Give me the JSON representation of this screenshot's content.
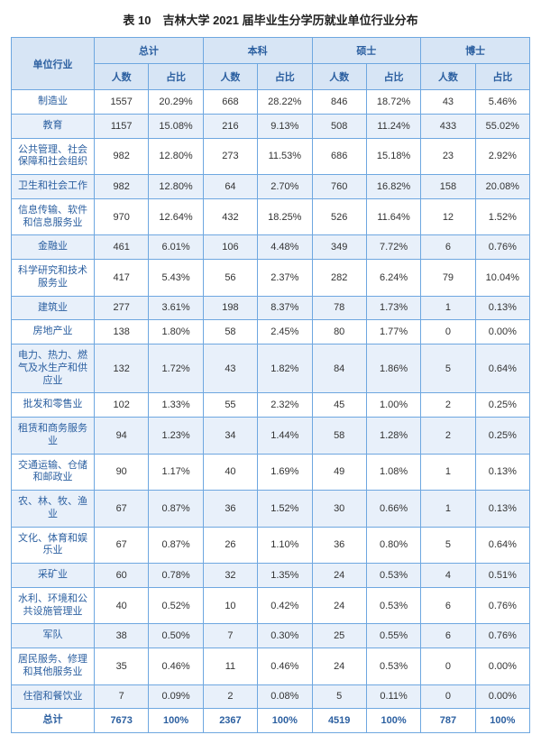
{
  "title": "表 10　吉林大学 2021 届毕业生分学历就业单位行业分布",
  "colors": {
    "border": "#6ea7e0",
    "header_bg": "#d7e5f5",
    "alt_row_bg": "#e8f0fa",
    "text": "#333333",
    "header_text": "#2b5fa0"
  },
  "table": {
    "type": "table",
    "row_header": "单位行业",
    "groups": [
      "总计",
      "本科",
      "硕士",
      "博士"
    ],
    "sub_cols": [
      "人数",
      "占比"
    ],
    "rows": [
      {
        "industry": "制造业",
        "total_n": "1557",
        "total_p": "20.29%",
        "ug_n": "668",
        "ug_p": "28.22%",
        "ms_n": "846",
        "ms_p": "18.72%",
        "phd_n": "43",
        "phd_p": "5.46%"
      },
      {
        "industry": "教育",
        "total_n": "1157",
        "total_p": "15.08%",
        "ug_n": "216",
        "ug_p": "9.13%",
        "ms_n": "508",
        "ms_p": "11.24%",
        "phd_n": "433",
        "phd_p": "55.02%"
      },
      {
        "industry": "公共管理、社会保障和社会组织",
        "total_n": "982",
        "total_p": "12.80%",
        "ug_n": "273",
        "ug_p": "11.53%",
        "ms_n": "686",
        "ms_p": "15.18%",
        "phd_n": "23",
        "phd_p": "2.92%"
      },
      {
        "industry": "卫生和社会工作",
        "total_n": "982",
        "total_p": "12.80%",
        "ug_n": "64",
        "ug_p": "2.70%",
        "ms_n": "760",
        "ms_p": "16.82%",
        "phd_n": "158",
        "phd_p": "20.08%"
      },
      {
        "industry": "信息传输、软件和信息服务业",
        "total_n": "970",
        "total_p": "12.64%",
        "ug_n": "432",
        "ug_p": "18.25%",
        "ms_n": "526",
        "ms_p": "11.64%",
        "phd_n": "12",
        "phd_p": "1.52%"
      },
      {
        "industry": "金融业",
        "total_n": "461",
        "total_p": "6.01%",
        "ug_n": "106",
        "ug_p": "4.48%",
        "ms_n": "349",
        "ms_p": "7.72%",
        "phd_n": "6",
        "phd_p": "0.76%"
      },
      {
        "industry": "科学研究和技术服务业",
        "total_n": "417",
        "total_p": "5.43%",
        "ug_n": "56",
        "ug_p": "2.37%",
        "ms_n": "282",
        "ms_p": "6.24%",
        "phd_n": "79",
        "phd_p": "10.04%"
      },
      {
        "industry": "建筑业",
        "total_n": "277",
        "total_p": "3.61%",
        "ug_n": "198",
        "ug_p": "8.37%",
        "ms_n": "78",
        "ms_p": "1.73%",
        "phd_n": "1",
        "phd_p": "0.13%"
      },
      {
        "industry": "房地产业",
        "total_n": "138",
        "total_p": "1.80%",
        "ug_n": "58",
        "ug_p": "2.45%",
        "ms_n": "80",
        "ms_p": "1.77%",
        "phd_n": "0",
        "phd_p": "0.00%"
      },
      {
        "industry": "电力、热力、燃气及水生产和供应业",
        "total_n": "132",
        "total_p": "1.72%",
        "ug_n": "43",
        "ug_p": "1.82%",
        "ms_n": "84",
        "ms_p": "1.86%",
        "phd_n": "5",
        "phd_p": "0.64%"
      },
      {
        "industry": "批发和零售业",
        "total_n": "102",
        "total_p": "1.33%",
        "ug_n": "55",
        "ug_p": "2.32%",
        "ms_n": "45",
        "ms_p": "1.00%",
        "phd_n": "2",
        "phd_p": "0.25%"
      },
      {
        "industry": "租赁和商务服务业",
        "total_n": "94",
        "total_p": "1.23%",
        "ug_n": "34",
        "ug_p": "1.44%",
        "ms_n": "58",
        "ms_p": "1.28%",
        "phd_n": "2",
        "phd_p": "0.25%"
      },
      {
        "industry": "交通运输、仓储和邮政业",
        "total_n": "90",
        "total_p": "1.17%",
        "ug_n": "40",
        "ug_p": "1.69%",
        "ms_n": "49",
        "ms_p": "1.08%",
        "phd_n": "1",
        "phd_p": "0.13%"
      },
      {
        "industry": "农、林、牧、渔业",
        "total_n": "67",
        "total_p": "0.87%",
        "ug_n": "36",
        "ug_p": "1.52%",
        "ms_n": "30",
        "ms_p": "0.66%",
        "phd_n": "1",
        "phd_p": "0.13%"
      },
      {
        "industry": "文化、体育和娱乐业",
        "total_n": "67",
        "total_p": "0.87%",
        "ug_n": "26",
        "ug_p": "1.10%",
        "ms_n": "36",
        "ms_p": "0.80%",
        "phd_n": "5",
        "phd_p": "0.64%"
      },
      {
        "industry": "采矿业",
        "total_n": "60",
        "total_p": "0.78%",
        "ug_n": "32",
        "ug_p": "1.35%",
        "ms_n": "24",
        "ms_p": "0.53%",
        "phd_n": "4",
        "phd_p": "0.51%"
      },
      {
        "industry": "水利、环境和公共设施管理业",
        "total_n": "40",
        "total_p": "0.52%",
        "ug_n": "10",
        "ug_p": "0.42%",
        "ms_n": "24",
        "ms_p": "0.53%",
        "phd_n": "6",
        "phd_p": "0.76%"
      },
      {
        "industry": "军队",
        "total_n": "38",
        "total_p": "0.50%",
        "ug_n": "7",
        "ug_p": "0.30%",
        "ms_n": "25",
        "ms_p": "0.55%",
        "phd_n": "6",
        "phd_p": "0.76%"
      },
      {
        "industry": "居民服务、修理和其他服务业",
        "total_n": "35",
        "total_p": "0.46%",
        "ug_n": "11",
        "ug_p": "0.46%",
        "ms_n": "24",
        "ms_p": "0.53%",
        "phd_n": "0",
        "phd_p": "0.00%"
      },
      {
        "industry": "住宿和餐饮业",
        "total_n": "7",
        "total_p": "0.09%",
        "ug_n": "2",
        "ug_p": "0.08%",
        "ms_n": "5",
        "ms_p": "0.11%",
        "phd_n": "0",
        "phd_p": "0.00%"
      }
    ],
    "footer": {
      "label": "总计",
      "total_n": "7673",
      "total_p": "100%",
      "ug_n": "2367",
      "ug_p": "100%",
      "ms_n": "4519",
      "ms_p": "100%",
      "phd_n": "787",
      "phd_p": "100%"
    }
  }
}
